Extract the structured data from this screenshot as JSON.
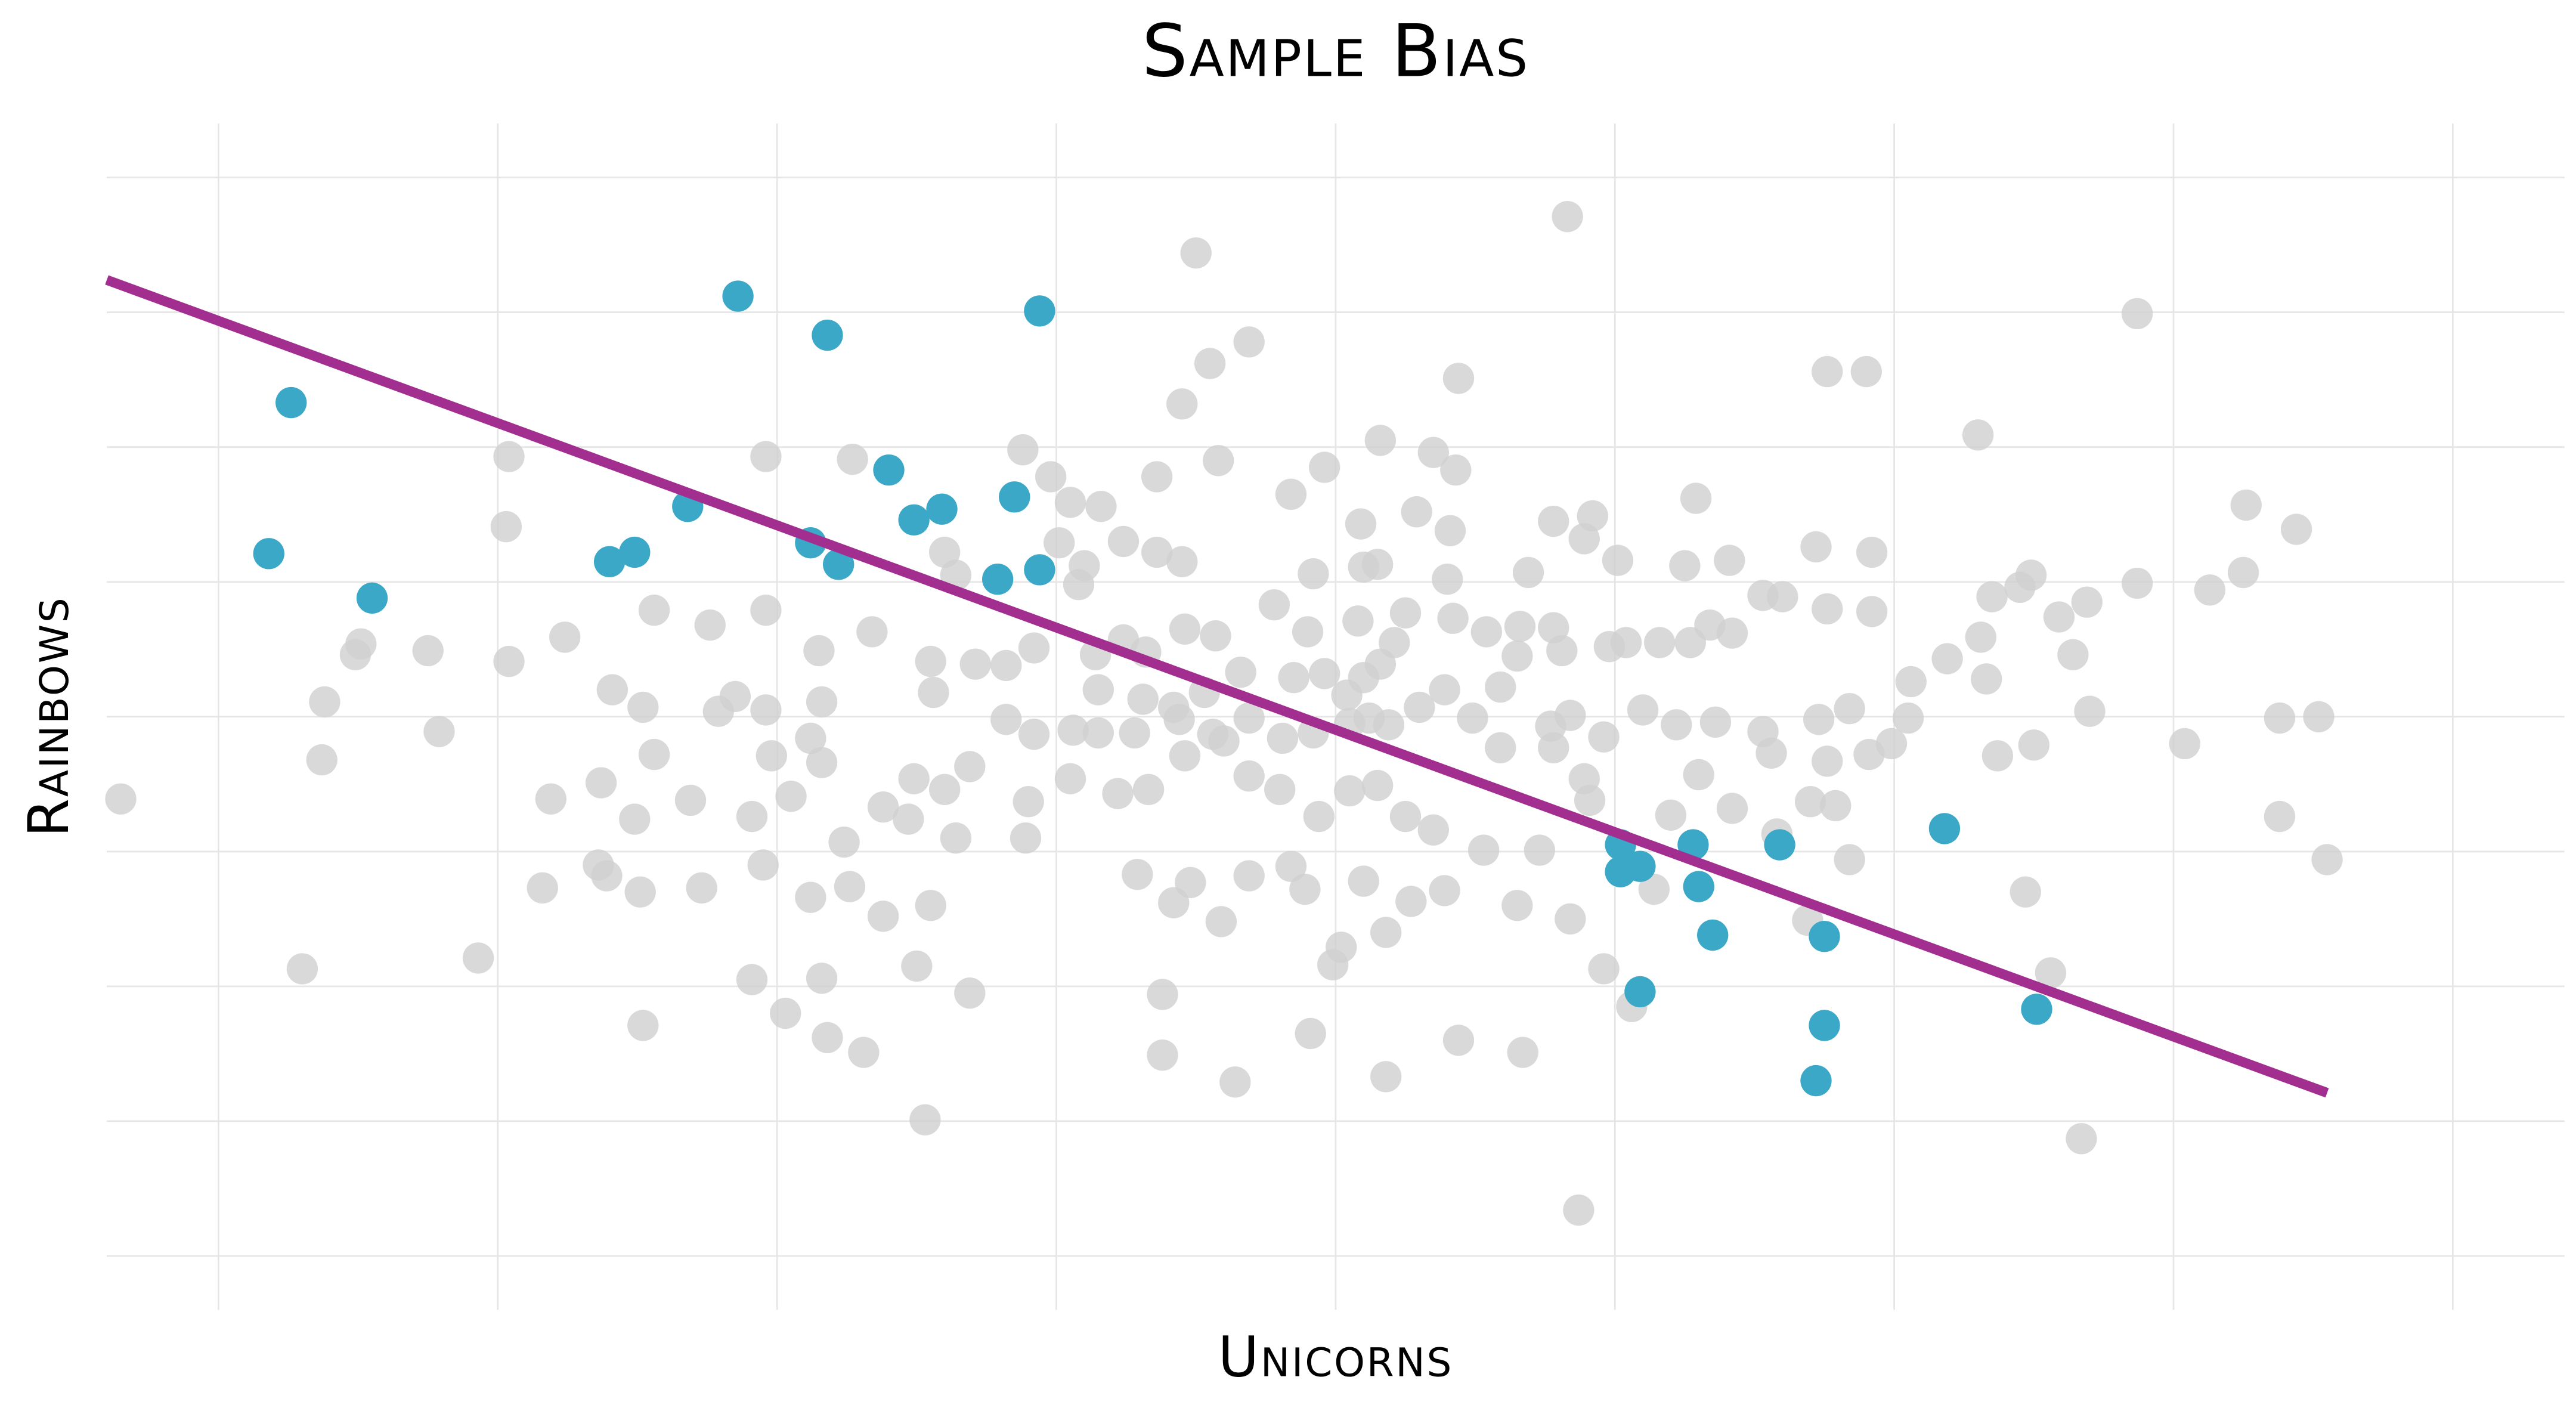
{
  "chart_data": {
    "type": "scatter",
    "title": "Sample Bias",
    "x_label": "Unicorns",
    "y_label": "Rainbows",
    "xlim": [
      -4.4,
      4.4
    ],
    "ylim": [
      -4.4,
      4.4
    ],
    "xticks": [
      -4,
      -3,
      -2,
      -1,
      0,
      1,
      2,
      3,
      4
    ],
    "yticks": [
      -4,
      -3,
      -2,
      -1,
      0,
      1,
      2,
      3,
      4
    ],
    "grid": true,
    "series": [
      {
        "color": "#d0d0d0",
        "x": [
          0.83,
          -0.5,
          2.87,
          -0.31,
          -0.45,
          -0.55,
          0.44,
          1.76,
          1.9,
          2.3,
          0.16,
          0.35,
          -2.96,
          -2.04,
          -1.73,
          -1.12,
          -1.02,
          -0.64,
          -0.42,
          -0.04,
          -0.16,
          0.43,
          -2.97,
          -0.95,
          -0.84,
          0.09,
          0.29,
          0.41,
          0.78,
          0.92,
          1.29,
          3.26,
          3.44,
          1.72,
          1.92,
          1.41,
          1.25,
          1.01,
          0.89,
          0.69,
          -1.4,
          -1.36,
          -0.99,
          -0.76,
          -0.64,
          -0.55,
          -0.08,
          0.1,
          0.15,
          0.4,
          -0.92,
          -0.9,
          2.49,
          2.87,
          3.13,
          3.25,
          2.35,
          2.45,
          2.69,
          2.59,
          2.31,
          2.19,
          2.64,
          2.06,
          2.33,
          1.84,
          2.05,
          2.7,
          3.04,
          3.38,
          3.52,
          3.38,
          3.55,
          2.5,
          2.37,
          1.99,
          1.91,
          1.76,
          1.56,
          1.53,
          1.73,
          1.53,
          1.6,
          1.76,
          1.92,
          1.42,
          1.34,
          1.27,
          1.16,
          1.04,
          0.98,
          0.81,
          0.65,
          0.54,
          0.42,
          0.25,
          0.08,
          -0.1,
          -0.22,
          -0.43,
          -0.54,
          -0.68,
          -0.76,
          -0.86,
          -1.08,
          -1.18,
          -1.29,
          -1.45,
          -1.66,
          -1.85,
          -2.04,
          -2.24,
          -2.44,
          -2.76,
          -2.96,
          -3.25,
          -3.49,
          -3.51,
          -3.62,
          -3.63,
          -3.21,
          -4.35,
          -2.59,
          -2.48,
          -2.15,
          -2.21,
          -2.04,
          -1.84,
          -1.44,
          -1.88,
          -1.84,
          -2.02,
          -2.44,
          -2.63,
          -2.81,
          -2.51,
          -2.31,
          -2.09,
          -1.95,
          -1.76,
          -1.62,
          -1.53,
          -1.51,
          -1.4,
          -1.31,
          -1.18,
          -1.08,
          -0.94,
          -0.85,
          -0.72,
          -0.56,
          -0.44,
          -0.31,
          -0.19,
          -0.08,
          0.05,
          0.12,
          0.19,
          0.3,
          0.39,
          0.49,
          0.59,
          0.77,
          0.84,
          0.96,
          1.1,
          1.22,
          1.36,
          -0.4,
          -1.1,
          -1.11,
          -0.95,
          -0.78,
          -0.67,
          -0.54,
          -0.31,
          -0.2,
          -0.06,
          0.05,
          0.15,
          0.25,
          0.35,
          0.53,
          0.73,
          0.91,
          1.2,
          1.3,
          1.42,
          1.58,
          1.7,
          1.79,
          1.84,
          1.69,
          2.47,
          2.56,
          2.67,
          0.87,
          0.67,
          0.44,
          0.18,
          -0.09,
          -0.01,
          0.02,
          0.18,
          -0.36,
          -0.62,
          -0.62,
          -1.31,
          -1.47,
          -1.69,
          -1.82,
          -1.84,
          -1.97,
          -2.09,
          -2.48,
          -3.07,
          -3.7,
          -2.84,
          -2.64,
          -2.61,
          -2.49,
          -2.27,
          -2.05,
          -1.88,
          -1.74,
          -1.62,
          -1.5,
          -1.45,
          -1.36,
          -0.71,
          -0.58,
          -0.52,
          -0.41,
          -0.31,
          -0.16,
          -0.11,
          0.1,
          0.27,
          0.39,
          0.65,
          0.84,
          0.96,
          1.06,
          1.14,
          0.89,
          0.78,
          0.59,
          0.66,
          0.78,
          0.04,
          0.1,
          0.16,
          0.21,
          -0.04,
          -0.15,
          -0.34,
          -0.47,
          -0.58,
          -0.69,
          -0.85
        ],
        "y": [
          3.71,
          3.44,
          2.99,
          2.78,
          2.62,
          2.32,
          2.51,
          2.56,
          2.56,
          2.09,
          2.05,
          1.96,
          1.93,
          1.93,
          1.91,
          1.98,
          1.78,
          1.78,
          1.9,
          1.85,
          1.65,
          1.83,
          1.41,
          1.59,
          1.56,
          1.43,
          1.52,
          1.38,
          1.45,
          1.49,
          1.62,
          1.57,
          1.39,
          1.26,
          1.22,
          1.16,
          1.12,
          1.16,
          1.32,
          1.07,
          1.22,
          1.05,
          1.29,
          1.3,
          1.22,
          1.15,
          1.06,
          1.11,
          1.13,
          1.02,
          0.98,
          1.12,
          1.05,
          0.99,
          0.94,
          1.07,
          0.89,
          0.96,
          0.85,
          0.74,
          0.59,
          0.43,
          0.46,
          0.26,
          0.28,
          0.06,
          -0.01,
          0.04,
          -0.2,
          -0.01,
          0.0,
          -0.74,
          -1.06,
          -0.21,
          -0.29,
          -0.2,
          -0.28,
          -0.33,
          -0.27,
          -0.11,
          -0.02,
          0.9,
          0.89,
          0.8,
          0.78,
          0.62,
          0.68,
          0.55,
          0.55,
          0.55,
          0.52,
          0.49,
          0.45,
          0.63,
          0.73,
          0.77,
          0.71,
          0.63,
          0.83,
          0.6,
          0.65,
          0.48,
          0.57,
          0.46,
          0.51,
          0.38,
          0.39,
          0.41,
          0.63,
          0.49,
          0.79,
          0.68,
          0.79,
          0.59,
          0.41,
          0.49,
          0.54,
          0.46,
          0.11,
          -0.32,
          -0.11,
          -0.61,
          0.2,
          0.07,
          0.15,
          0.04,
          0.05,
          0.11,
          0.18,
          -0.16,
          -0.34,
          -0.29,
          -0.28,
          -0.49,
          -0.61,
          -0.76,
          -0.62,
          -0.74,
          -0.59,
          -0.93,
          -0.67,
          -0.76,
          -0.46,
          -0.54,
          -0.37,
          -0.02,
          -0.13,
          -0.1,
          -0.12,
          -0.12,
          -0.02,
          -0.13,
          -0.01,
          -0.16,
          -0.12,
          -0.05,
          -0.01,
          -0.06,
          0.07,
          0.2,
          -0.01,
          -0.23,
          -0.07,
          0.01,
          -0.15,
          0.05,
          -0.06,
          -0.04,
          -0.18,
          -0.63,
          -0.9,
          -0.46,
          -0.57,
          -0.54,
          -0.29,
          -0.44,
          -0.54,
          -0.74,
          -0.55,
          -0.51,
          -0.74,
          -0.84,
          -0.99,
          -0.99,
          -0.62,
          -0.73,
          -0.43,
          -0.68,
          -0.87,
          -0.63,
          -0.66,
          -1.06,
          -1.51,
          -1.3,
          -1.9,
          -3.13,
          -3.66,
          -2.49,
          -2.4,
          -2.67,
          -2.35,
          -1.84,
          -1.71,
          -1.6,
          -2.71,
          -2.51,
          -2.06,
          -2.05,
          -2.99,
          -2.49,
          -2.38,
          -1.94,
          -2.2,
          -1.95,
          -2.29,
          -1.79,
          -1.87,
          -1.27,
          -1.1,
          -1.18,
          -1.3,
          -1.27,
          -1.1,
          -1.34,
          -1.26,
          -1.48,
          -1.85,
          -1.4,
          -0.9,
          -1.17,
          -1.38,
          -1.23,
          -1.52,
          -1.18,
          -1.11,
          -1.28,
          -1.22,
          -1.37,
          -1.29,
          -1.4,
          -1.5,
          -1.87,
          -2.15,
          -1.28,
          -0.46,
          -0.23,
          0.22,
          0.67,
          0.66,
          0.16,
          0.29,
          0.39,
          0.55,
          0.32,
          0.29,
          0.33,
          0.18,
          0.07,
          0.13,
          0.2
        ]
      },
      {
        "color": "#3aa8c6",
        "x": [
          -3.74,
          -3.82,
          -3.45,
          -2.14,
          -1.82,
          -1.06,
          -1.6,
          -2.32,
          -2.6,
          -2.51,
          -1.88,
          -1.78,
          -1.51,
          -1.41,
          -1.15,
          -1.21,
          -1.06,
          1.02,
          1.02,
          1.09,
          1.28,
          1.3,
          1.35,
          1.59,
          1.75,
          1.09,
          1.75,
          1.72,
          2.18,
          2.51
        ],
        "y": [
          2.33,
          1.21,
          0.88,
          3.12,
          2.83,
          3.01,
          1.83,
          1.56,
          1.15,
          1.22,
          1.29,
          1.13,
          1.46,
          1.54,
          1.63,
          1.02,
          1.09,
          -0.95,
          -1.15,
          -1.11,
          -0.95,
          -1.26,
          -1.62,
          -0.95,
          -1.63,
          -2.04,
          -2.29,
          -2.7,
          -0.83,
          -2.17
        ]
      }
    ],
    "fit_line": {
      "color": "#a22f90",
      "x": [
        -4.4,
        3.55
      ],
      "y": [
        3.24,
        -2.79
      ]
    }
  }
}
